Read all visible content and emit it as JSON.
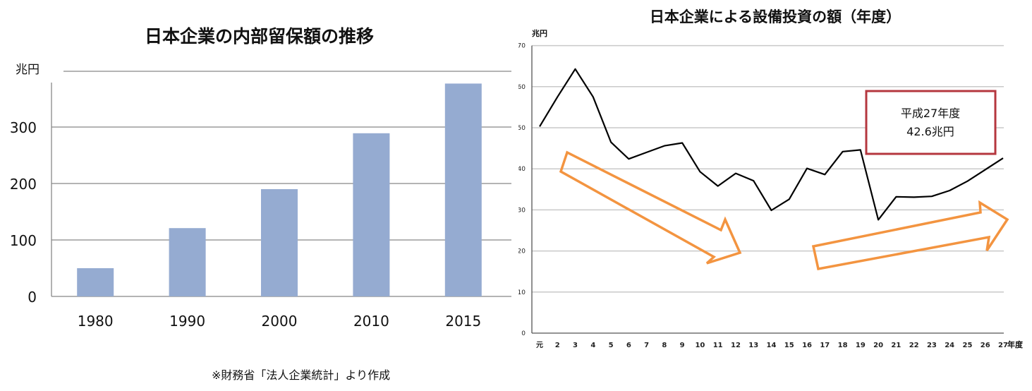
{
  "chart_data": [
    {
      "type": "bar",
      "title": "日本企業の内部留保額の推移",
      "ylabel": "兆円",
      "categories": [
        "1980",
        "1990",
        "2000",
        "2010",
        "2015"
      ],
      "values": [
        50,
        121,
        190,
        289,
        377
      ],
      "ylim": [
        0,
        380
      ],
      "yticks": [
        0,
        100,
        200,
        300
      ],
      "grid": true,
      "bar_color": "#95abd1"
    },
    {
      "type": "line",
      "title": "日本企業による設備投資の額（年度）",
      "ylabel": "兆円",
      "xlabel": "年度",
      "x": [
        "元",
        "2",
        "3",
        "4",
        "5",
        "6",
        "7",
        "8",
        "9",
        "10",
        "11",
        "12",
        "13",
        "14",
        "15",
        "16",
        "17",
        "18",
        "19",
        "20",
        "21",
        "22",
        "23",
        "24",
        "25",
        "26",
        "27"
      ],
      "values": [
        50.3,
        57.5,
        64.3,
        57.5,
        46.5,
        42.4,
        44.0,
        45.6,
        46.3,
        39.3,
        35.8,
        38.9,
        37.1,
        29.9,
        32.6,
        40.1,
        38.6,
        44.2,
        44.6,
        27.6,
        33.2,
        33.1,
        33.3,
        34.7,
        37.0,
        39.8,
        42.6
      ],
      "ylim": [
        0,
        70
      ],
      "yticks": [
        0,
        10,
        20,
        30,
        40,
        50,
        60,
        70
      ],
      "grid": true,
      "line_color": "#000000",
      "annotation": {
        "line1": "平成27年度",
        "line2": "42.6兆円",
        "border_color": "#b5373f"
      },
      "trend_arrows": [
        {
          "direction": "down",
          "color": "#f39440"
        },
        {
          "direction": "up",
          "color": "#f39440"
        }
      ],
      "source_note": "※財務省「法人企業統計」より作成"
    }
  ]
}
